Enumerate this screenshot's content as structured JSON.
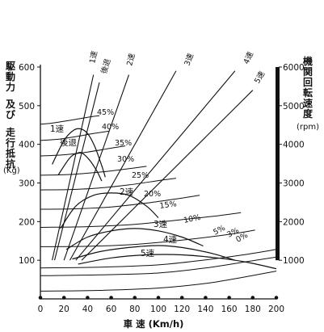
{
  "chart_data": {
    "type": "line",
    "xlabel": "車 速 (Km/h)",
    "ylabel_left": [
      "駆動力",
      "及び",
      "走行抵抗"
    ],
    "ylabel_left_unit": "(Kg)",
    "ylabel_right": "機関回転速度",
    "ylabel_right_unit": "(rpm)",
    "xlim": [
      0,
      200
    ],
    "ylim_left": [
      0,
      600
    ],
    "ylim_right": [
      0,
      6000
    ],
    "x_ticks": [
      "0",
      "20",
      "40",
      "60",
      "80",
      "100",
      "120",
      "140",
      "160",
      "180",
      "200"
    ],
    "y_ticks_left": [
      "100",
      "200",
      "300",
      "400",
      "500",
      "600"
    ],
    "y_ticks_right": [
      "1000",
      "2000",
      "3000",
      "4000",
      "5000",
      "6000"
    ],
    "grid": false,
    "resistance_curves": [
      {
        "name": "45%",
        "points": [
          [
            0,
            452
          ],
          [
            10,
            455
          ],
          [
            25,
            462
          ],
          [
            40,
            470
          ],
          [
            50,
            474
          ]
        ]
      },
      {
        "name": "40%",
        "points": [
          [
            0,
            410
          ],
          [
            15,
            413
          ],
          [
            30,
            420
          ],
          [
            45,
            428
          ],
          [
            58,
            434
          ]
        ]
      },
      {
        "name": "35%",
        "points": [
          [
            0,
            370
          ],
          [
            20,
            373
          ],
          [
            40,
            380
          ],
          [
            60,
            390
          ],
          [
            72,
            396
          ]
        ]
      },
      {
        "name": "30%",
        "points": [
          [
            0,
            320
          ],
          [
            25,
            322
          ],
          [
            50,
            328
          ],
          [
            70,
            335
          ],
          [
            90,
            343
          ]
        ]
      },
      {
        "name": "25%",
        "points": [
          [
            0,
            282
          ],
          [
            25,
            283
          ],
          [
            50,
            287
          ],
          [
            75,
            295
          ],
          [
            100,
            306
          ],
          [
            115,
            312
          ]
        ]
      },
      {
        "name": "20%",
        "points": [
          [
            0,
            232
          ],
          [
            30,
            233
          ],
          [
            60,
            238
          ],
          [
            90,
            248
          ],
          [
            120,
            261
          ],
          [
            135,
            268
          ]
        ]
      },
      {
        "name": "15%",
        "points": [
          [
            0,
            185
          ],
          [
            40,
            187
          ],
          [
            80,
            193
          ],
          [
            120,
            205
          ],
          [
            150,
            215
          ],
          [
            170,
            223
          ]
        ]
      },
      {
        "name": "10%",
        "points": [
          [
            0,
            135
          ],
          [
            40,
            136
          ],
          [
            80,
            141
          ],
          [
            120,
            152
          ],
          [
            160,
            167
          ],
          [
            182,
            178
          ]
        ]
      },
      {
        "name": "5%",
        "points": [
          [
            0,
            80
          ],
          [
            50,
            82
          ],
          [
            100,
            88
          ],
          [
            140,
            101
          ],
          [
            170,
            113
          ],
          [
            200,
            128
          ]
        ]
      },
      {
        "name": "3%",
        "points": [
          [
            0,
            60
          ],
          [
            50,
            62
          ],
          [
            100,
            67
          ],
          [
            140,
            80
          ],
          [
            170,
            94
          ],
          [
            200,
            108
          ]
        ]
      },
      {
        "name": "0%",
        "points": [
          [
            0,
            20
          ],
          [
            50,
            22
          ],
          [
            100,
            28
          ],
          [
            140,
            40
          ],
          [
            170,
            55
          ],
          [
            200,
            72
          ]
        ]
      }
    ],
    "tractive_force_curves": [
      {
        "name": "1速",
        "points": [
          [
            10,
            348
          ],
          [
            20,
            410
          ],
          [
            28,
            436
          ],
          [
            34,
            440
          ],
          [
            40,
            428
          ],
          [
            46,
            395
          ],
          [
            52,
            345
          ],
          [
            55,
            315
          ]
        ]
      },
      {
        "name": "後退",
        "points": [
          [
            15,
            320
          ],
          [
            25,
            365
          ],
          [
            32,
            378
          ],
          [
            36,
            376
          ],
          [
            42,
            358
          ],
          [
            48,
            330
          ],
          [
            52,
            305
          ]
        ]
      },
      {
        "name": "2速",
        "points": [
          [
            17,
            182
          ],
          [
            30,
            240
          ],
          [
            45,
            268
          ],
          [
            60,
            274
          ],
          [
            75,
            268
          ],
          [
            90,
            240
          ],
          [
            100,
            210
          ]
        ]
      },
      {
        "name": "3速",
        "points": [
          [
            22,
            128
          ],
          [
            40,
            160
          ],
          [
            60,
            176
          ],
          [
            80,
            182
          ],
          [
            100,
            176
          ],
          [
            120,
            160
          ],
          [
            138,
            137
          ]
        ]
      },
      {
        "name": "4速",
        "points": [
          [
            27,
            103
          ],
          [
            50,
            122
          ],
          [
            75,
            133
          ],
          [
            100,
            138
          ],
          [
            120,
            133
          ],
          [
            145,
            118
          ],
          [
            165,
            100
          ]
        ]
      },
      {
        "name": "5速",
        "points": [
          [
            32,
            90
          ],
          [
            60,
            106
          ],
          [
            90,
            114
          ],
          [
            120,
            114
          ],
          [
            150,
            106
          ],
          [
            175,
            95
          ],
          [
            200,
            78
          ]
        ]
      }
    ],
    "engine_speed_lines": [
      {
        "name": "1速",
        "points": [
          [
            10,
            1000
          ],
          [
            45,
            5800
          ]
        ]
      },
      {
        "name": "後退",
        "points": [
          [
            12,
            1000
          ],
          [
            50,
            5600
          ]
        ]
      },
      {
        "name": "2速",
        "points": [
          [
            20,
            1000
          ],
          [
            75,
            5800
          ]
        ]
      },
      {
        "name": "3速",
        "points": [
          [
            25,
            1000
          ],
          [
            115,
            5900
          ]
        ]
      },
      {
        "name": "4速",
        "points": [
          [
            30,
            1000
          ],
          [
            165,
            5900
          ]
        ]
      },
      {
        "name": "5速",
        "points": [
          [
            35,
            1000
          ],
          [
            180,
            5400
          ]
        ]
      }
    ],
    "gear_labels": [
      "1速",
      "後退",
      "2速",
      "3速",
      "4速",
      "5速"
    ],
    "grade_labels": [
      "45%",
      "40%",
      "35%",
      "30%",
      "25%",
      "20%",
      "15%",
      "10%",
      "5%",
      "3%",
      "0%"
    ]
  }
}
